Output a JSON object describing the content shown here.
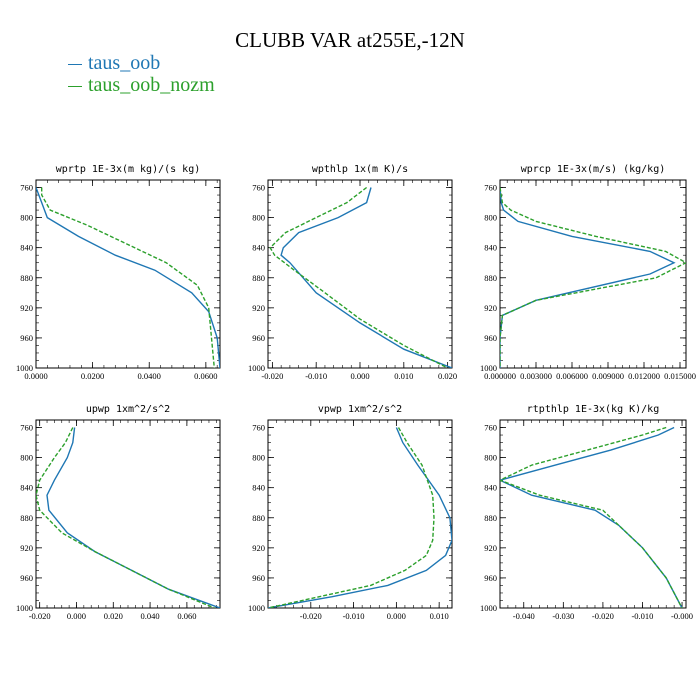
{
  "title": "CLUBB VAR at255E,-12N",
  "legend": [
    {
      "label": "taus_oob",
      "color": "#1f77b4"
    },
    {
      "label": "taus_oob_nozm",
      "color": "#2ca02c"
    }
  ],
  "chart_data": [
    {
      "type": "line",
      "title": "wprtp  1E-3x(m kg)/(s kg)",
      "xlim": [
        0.0,
        0.065
      ],
      "ylim": [
        1000,
        750
      ],
      "xticks": [
        0.0,
        0.02,
        0.04,
        0.06
      ],
      "xticklabels": [
        "0.0000",
        "0.0200",
        "0.0400",
        "0.0600"
      ],
      "yticks": [
        760,
        800,
        840,
        880,
        920,
        960,
        1000
      ],
      "series": [
        {
          "name": "taus_oob",
          "color": "#1f77b4",
          "dash": "",
          "x": [
            0.0,
            0.002,
            0.004,
            0.015,
            0.028,
            0.042,
            0.055,
            0.061,
            0.064,
            0.065
          ],
          "y": [
            760,
            780,
            800,
            825,
            850,
            870,
            900,
            925,
            960,
            1000
          ]
        },
        {
          "name": "taus_oob_nozm",
          "color": "#2ca02c",
          "dash": "4,2",
          "x": [
            0.002,
            0.002,
            0.005,
            0.018,
            0.032,
            0.046,
            0.057,
            0.061,
            0.062,
            0.063
          ],
          "y": [
            760,
            770,
            790,
            810,
            835,
            860,
            890,
            920,
            960,
            1000
          ]
        }
      ]
    },
    {
      "type": "line",
      "title": "wpthlp  1x(m K)/s",
      "xlim": [
        -0.021,
        0.021
      ],
      "ylim": [
        1000,
        750
      ],
      "xticks": [
        -0.02,
        -0.01,
        0.0,
        0.01,
        0.02
      ],
      "xticklabels": [
        "-0.020",
        "-0.010",
        "0.000",
        "0.010",
        "0.020"
      ],
      "yticks": [
        760,
        800,
        840,
        880,
        920,
        960,
        1000
      ],
      "series": [
        {
          "name": "taus_oob",
          "color": "#1f77b4",
          "dash": "",
          "x": [
            0.0025,
            0.0015,
            -0.005,
            -0.014,
            -0.0175,
            -0.018,
            -0.016,
            -0.01,
            0.0,
            0.01,
            0.021
          ],
          "y": [
            760,
            780,
            800,
            820,
            840,
            850,
            860,
            900,
            940,
            975,
            1000
          ]
        },
        {
          "name": "taus_oob_nozm",
          "color": "#2ca02c",
          "dash": "4,2",
          "x": [
            0.0015,
            -0.003,
            -0.01,
            -0.017,
            -0.0205,
            -0.0195,
            -0.015,
            -0.008,
            0.0,
            0.01,
            0.02
          ],
          "y": [
            760,
            780,
            800,
            820,
            840,
            850,
            870,
            900,
            935,
            970,
            1000
          ]
        }
      ]
    },
    {
      "type": "line",
      "title": "wprcp  1E-3x(m/s) (kg/kg)",
      "xlim": [
        0.0,
        0.0155
      ],
      "ylim": [
        1000,
        750
      ],
      "xticks": [
        0.0,
        0.003,
        0.006,
        0.009,
        0.012,
        0.015
      ],
      "xticklabels": [
        "0.000000",
        "0.003000",
        "0.006000",
        "0.009000",
        "0.012000",
        "0.015000"
      ],
      "yticks": [
        760,
        800,
        840,
        880,
        920,
        960,
        1000
      ],
      "series": [
        {
          "name": "taus_oob",
          "color": "#1f77b4",
          "dash": "",
          "x": [
            0.0,
            0.0001,
            0.0003,
            0.0015,
            0.006,
            0.0125,
            0.0145,
            0.0125,
            0.003,
            0.0002,
            0.0,
            0.0
          ],
          "y": [
            760,
            780,
            790,
            805,
            825,
            845,
            860,
            875,
            910,
            930,
            960,
            1000
          ]
        },
        {
          "name": "taus_oob_nozm",
          "color": "#2ca02c",
          "dash": "4,2",
          "x": [
            0.0,
            0.0002,
            0.0009,
            0.003,
            0.008,
            0.0138,
            0.0155,
            0.013,
            0.003,
            0.0002,
            0.0,
            0.0
          ],
          "y": [
            760,
            780,
            790,
            805,
            825,
            845,
            860,
            880,
            910,
            930,
            960,
            1000
          ]
        }
      ]
    },
    {
      "type": "line",
      "title": "upwp  1xm^2/s^2",
      "xlim": [
        -0.022,
        0.078
      ],
      "ylim": [
        1000,
        750
      ],
      "xticks": [
        -0.02,
        0.0,
        0.02,
        0.04,
        0.06
      ],
      "xticklabels": [
        "-0.020",
        "0.000",
        "0.020",
        "0.040",
        "0.060"
      ],
      "yticks": [
        760,
        800,
        840,
        880,
        920,
        960,
        1000
      ],
      "series": [
        {
          "name": "taus_oob",
          "color": "#1f77b4",
          "dash": "",
          "x": [
            -0.001,
            -0.002,
            -0.005,
            -0.012,
            -0.016,
            -0.015,
            -0.005,
            0.01,
            0.03,
            0.05,
            0.078
          ],
          "y": [
            760,
            780,
            800,
            830,
            850,
            870,
            900,
            925,
            950,
            975,
            1000
          ]
        },
        {
          "name": "taus_oob_nozm",
          "color": "#2ca02c",
          "dash": "4,2",
          "x": [
            -0.002,
            -0.006,
            -0.012,
            -0.02,
            -0.022,
            -0.02,
            -0.008,
            0.01,
            0.03,
            0.05,
            0.075
          ],
          "y": [
            760,
            780,
            800,
            830,
            850,
            870,
            900,
            925,
            950,
            975,
            1000
          ]
        }
      ]
    },
    {
      "type": "line",
      "title": "vpwp  1xm^2/s^2",
      "xlim": [
        -0.03,
        0.013
      ],
      "ylim": [
        1000,
        750
      ],
      "xticks": [
        -0.02,
        -0.01,
        0.0,
        0.01
      ],
      "xticklabels": [
        "-0.020",
        "-0.010",
        "0.000",
        "0.010"
      ],
      "yticks": [
        760,
        800,
        840,
        880,
        920,
        960,
        1000
      ],
      "series": [
        {
          "name": "taus_oob",
          "color": "#1f77b4",
          "dash": "",
          "x": [
            0.0,
            0.0015,
            0.005,
            0.01,
            0.0125,
            0.013,
            0.0115,
            0.007,
            -0.002,
            -0.015,
            -0.03
          ],
          "y": [
            760,
            780,
            810,
            850,
            880,
            910,
            930,
            950,
            970,
            985,
            1000
          ]
        },
        {
          "name": "taus_oob_nozm",
          "color": "#2ca02c",
          "dash": "4,2",
          "x": [
            0.0005,
            0.0025,
            0.006,
            0.0085,
            0.0088,
            0.0085,
            0.007,
            0.002,
            -0.006,
            -0.018,
            -0.03
          ],
          "y": [
            760,
            780,
            810,
            850,
            880,
            910,
            930,
            950,
            970,
            985,
            1000
          ]
        }
      ]
    },
    {
      "type": "line",
      "title": "rtpthlp  1E-3x(kg K)/kg",
      "xlim": [
        -0.046,
        0.001
      ],
      "ylim": [
        1000,
        750
      ],
      "xticks": [
        -0.04,
        -0.03,
        -0.02,
        -0.01,
        0.0
      ],
      "xticklabels": [
        "-0.040",
        "-0.030",
        "-0.020",
        "-0.010",
        "-0.000"
      ],
      "yticks": [
        760,
        800,
        840,
        880,
        920,
        960,
        1000
      ],
      "series": [
        {
          "name": "taus_oob",
          "color": "#1f77b4",
          "dash": "",
          "x": [
            -0.002,
            -0.006,
            -0.018,
            -0.032,
            -0.046,
            -0.038,
            -0.022,
            -0.016,
            -0.01,
            -0.004,
            0.0
          ],
          "y": [
            760,
            770,
            790,
            810,
            830,
            850,
            870,
            890,
            920,
            960,
            1000
          ]
        },
        {
          "name": "taus_oob_nozm",
          "color": "#2ca02c",
          "dash": "4,2",
          "x": [
            -0.004,
            -0.01,
            -0.024,
            -0.038,
            -0.046,
            -0.036,
            -0.02,
            -0.016,
            -0.01,
            -0.004,
            0.0
          ],
          "y": [
            760,
            770,
            790,
            810,
            830,
            850,
            870,
            890,
            920,
            960,
            1000
          ]
        }
      ]
    }
  ]
}
